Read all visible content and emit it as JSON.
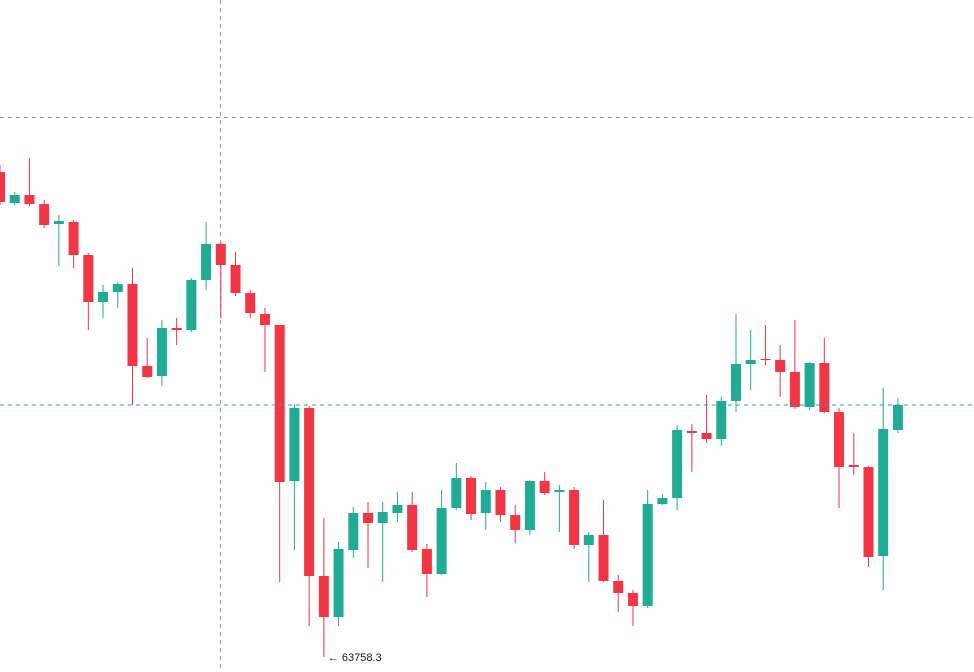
{
  "chart_data": {
    "type": "candlestick",
    "open": [
      68608.3,
      68298.3,
      68378.3,
      68288.3,
      68088.3,
      68108.3,
      67778.3,
      67308.3,
      67408.3,
      67488.3,
      66668.3,
      66568.3,
      67048.3,
      67028.3,
      67528.3,
      67888.3,
      67678.3,
      67398.3,
      67188.3,
      67078.3,
      65518.3,
      66248.3,
      64568.3,
      64158.3,
      64828.3,
      65198.3,
      65098.3,
      65198.3,
      65278.3,
      64838.3,
      64588.3,
      65248.3,
      65548.3,
      65198.3,
      65428.3,
      65178.3,
      65028.3,
      65518.3,
      65408.3,
      65428.3,
      64878.3,
      64978.3,
      64518.3,
      64398.3,
      64268.3,
      65288.3,
      65348.3,
      66018.3,
      65998.3,
      65938.3,
      66318.3,
      66688.3,
      66738.3,
      66728.3,
      66608.3,
      66258.3,
      66698.3,
      66208.3,
      65678.3,
      65658.3,
      64768.3,
      66028.3
    ],
    "high": [
      68678.3,
      68408.3,
      68748.3,
      68328.3,
      68178.3,
      68128.3,
      67798.3,
      67478.3,
      67508.3,
      67648.3,
      66948.3,
      67128.3,
      67148.3,
      67548.3,
      68108.3,
      67908.3,
      67808.3,
      67428.3,
      67248.3,
      67078.3,
      66288.3,
      66268.3,
      65148.3,
      64908.3,
      65258.3,
      65308.3,
      65308.3,
      65408.3,
      65408.3,
      64888.3,
      65428.3,
      65698.3,
      65568.3,
      65508.3,
      65458.3,
      65278.3,
      65528.3,
      65608.3,
      65478.3,
      65458.3,
      65008.3,
      65328.3,
      64578.3,
      64428.3,
      65428.3,
      65388.3,
      66078.3,
      66088.3,
      66378.3,
      66358.3,
      67188.3,
      67028.3,
      67078.3,
      66878.3,
      67128.3,
      66708.3,
      66948.3,
      66248.3,
      65998.3,
      65668.3,
      66448.3,
      66348.3
    ],
    "low": [
      68278.3,
      68278.3,
      68268.3,
      68048.3,
      67668.3,
      67648.3,
      67028.3,
      67148.3,
      67248.3,
      66278.3,
      66548.3,
      66468.3,
      66878.3,
      67008.3,
      67428.3,
      67148.3,
      67368.3,
      67148.3,
      66608.3,
      64508.3,
      64828.3,
      64068.3,
      63758.3,
      64068.3,
      64748.3,
      64648.3,
      64508.3,
      65108.3,
      64808.3,
      64358.3,
      64578.3,
      65228.3,
      65128.3,
      65028.3,
      65108.3,
      64898.3,
      64978.3,
      65378.3,
      65008.3,
      64838.3,
      64508.3,
      64508.3,
      64208.3,
      64068.3,
      64248.3,
      65278.3,
      65228.3,
      65608.3,
      65898.3,
      65868.3,
      66208.3,
      66428.3,
      66678.3,
      66358.3,
      66238.3,
      66228.3,
      66198.3,
      65248.3,
      65578.3,
      64658.3,
      64428.3,
      65998.3
    ],
    "close": [
      68308.3,
      68378.3,
      68288.3,
      68078.3,
      68118.3,
      67778.3,
      67308.3,
      67408.3,
      67488.3,
      66668.3,
      66558.3,
      67048.3,
      67028.3,
      67528.3,
      67888.3,
      67678.3,
      67398.3,
      67198.3,
      67078.3,
      65508.3,
      66248.3,
      64568.3,
      64158.3,
      64838.3,
      65198.3,
      65098.3,
      65208.3,
      65278.3,
      64828.3,
      64588.3,
      65248.3,
      65548.3,
      65188.3,
      65428.3,
      65178.3,
      65028.3,
      65518.3,
      65398.3,
      65428.3,
      64878.3,
      64978.3,
      64518.3,
      64398.3,
      64268.3,
      65288.3,
      65348.3,
      66028.3,
      65998.3,
      65938.3,
      66318.3,
      66688.3,
      66728.3,
      66728.3,
      66608.3,
      66258.3,
      66698.3,
      66208.3,
      65658.3,
      65658.3,
      64758.3,
      66038.3,
      66278.3
    ],
    "up_color": "#22ab94",
    "down_color": "#f23645",
    "ylim": [
      63608.3,
      70328.3
    ],
    "annotations": [
      {
        "text": "← 63758.3"
      }
    ]
  }
}
